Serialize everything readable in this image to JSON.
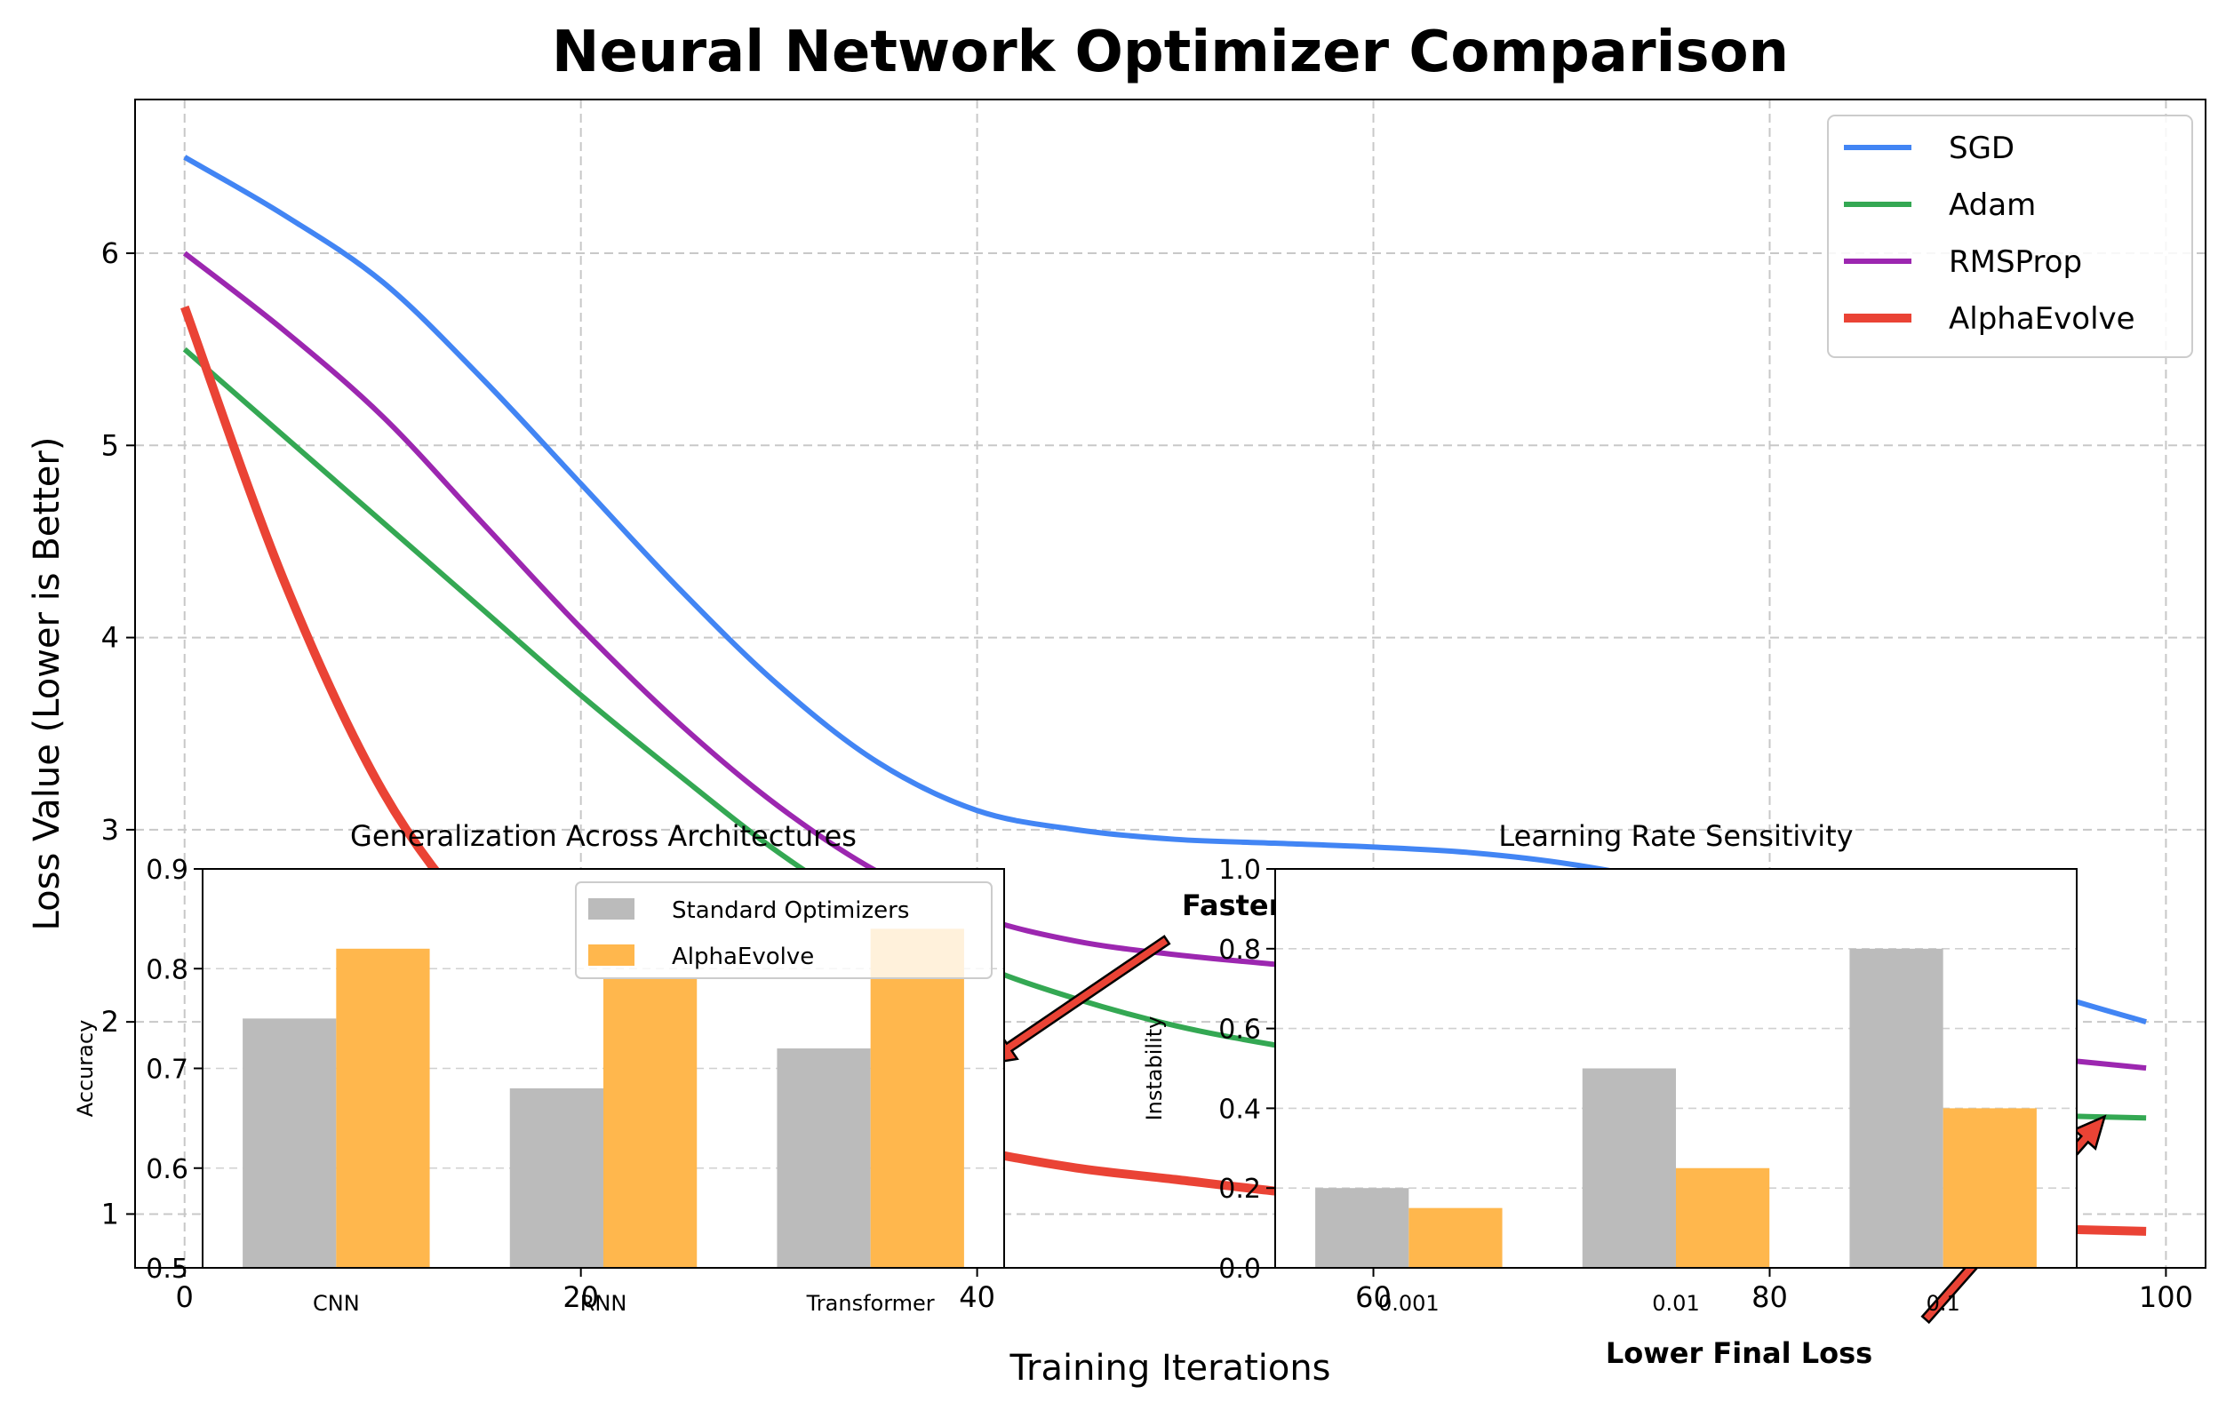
{
  "chart_data": [
    {
      "type": "line",
      "title": "Neural Network Optimizer Comparison",
      "xlabel": "Training Iterations",
      "ylabel": "Loss Value (Lower is Better)",
      "xlim": [
        -2.5,
        102
      ],
      "ylim": [
        0.72,
        6.8
      ],
      "xticks": [
        0,
        20,
        40,
        60,
        80,
        100
      ],
      "yticks": [
        1,
        2,
        3,
        4,
        5,
        6
      ],
      "grid": true,
      "legend": "top-right",
      "x": [
        0,
        5,
        10,
        15,
        20,
        25,
        30,
        35,
        40,
        45,
        50,
        55,
        60,
        65,
        70,
        75,
        80,
        85,
        90,
        95,
        99
      ],
      "series": [
        {
          "name": "SGD",
          "color": "#4285F4",
          "width": 3,
          "values": [
            6.5,
            6.2,
            5.85,
            5.35,
            4.8,
            4.25,
            3.75,
            3.35,
            3.1,
            3.0,
            2.95,
            2.93,
            2.91,
            2.88,
            2.82,
            2.72,
            2.56,
            2.42,
            2.28,
            2.12,
            2.0
          ]
        },
        {
          "name": "Adam",
          "color": "#34A853",
          "width": 3,
          "values": [
            5.5,
            5.05,
            4.6,
            4.15,
            3.7,
            3.28,
            2.88,
            2.55,
            2.3,
            2.12,
            1.98,
            1.88,
            1.8,
            1.74,
            1.69,
            1.64,
            1.6,
            1.56,
            1.53,
            1.51,
            1.5
          ]
        },
        {
          "name": "RMSProp",
          "color": "#9C27B0",
          "width": 3,
          "values": [
            6.0,
            5.6,
            5.15,
            4.6,
            4.05,
            3.55,
            3.12,
            2.78,
            2.55,
            2.42,
            2.35,
            2.3,
            2.25,
            2.2,
            2.12,
            2.05,
            1.98,
            1.9,
            1.85,
            1.8,
            1.76
          ]
        },
        {
          "name": "AlphaEvolve",
          "color": "#EA4335",
          "width": 5,
          "values": [
            5.72,
            4.3,
            3.2,
            2.5,
            2.05,
            1.78,
            1.58,
            1.44,
            1.33,
            1.24,
            1.18,
            1.12,
            1.07,
            1.03,
            1.0,
            0.97,
            0.95,
            0.94,
            0.93,
            0.92,
            0.91
          ]
        }
      ],
      "annotations": [
        {
          "text": "Faster Convergence",
          "target_x": 40,
          "target_y": 1.78
        },
        {
          "text": "Lower Final Loss",
          "target_x": 97,
          "target_y": 1.48
        }
      ]
    },
    {
      "type": "bar",
      "title": "Generalization Across Architectures",
      "xlabel": "",
      "ylabel": "Accuracy",
      "ylim": [
        0.5,
        0.9
      ],
      "yticks": [
        "0.5",
        "0.6",
        "0.7",
        "0.8",
        "0.9"
      ],
      "categories": [
        "CNN",
        "RNN",
        "Transformer"
      ],
      "grid": true,
      "legend": "top-right",
      "series": [
        {
          "name": "Standard Optimizers",
          "color": "#BBBBBB",
          "values": [
            0.75,
            0.68,
            0.72
          ]
        },
        {
          "name": "AlphaEvolve",
          "color": "#FFB74D",
          "values": [
            0.82,
            0.79,
            0.84
          ]
        }
      ]
    },
    {
      "type": "bar",
      "title": "Learning Rate Sensitivity",
      "xlabel": "",
      "ylabel": "Instability",
      "ylim": [
        0.0,
        1.0
      ],
      "yticks": [
        "0.0",
        "0.2",
        "0.4",
        "0.6",
        "0.8",
        "1.0"
      ],
      "categories": [
        "0.001",
        "0.01",
        "0.1"
      ],
      "grid": true,
      "series": [
        {
          "name": "Standard Optimizers",
          "color": "#BBBBBB",
          "values": [
            0.2,
            0.5,
            0.8
          ]
        },
        {
          "name": "AlphaEvolve",
          "color": "#FFB74D",
          "values": [
            0.15,
            0.25,
            0.4
          ]
        }
      ]
    }
  ]
}
